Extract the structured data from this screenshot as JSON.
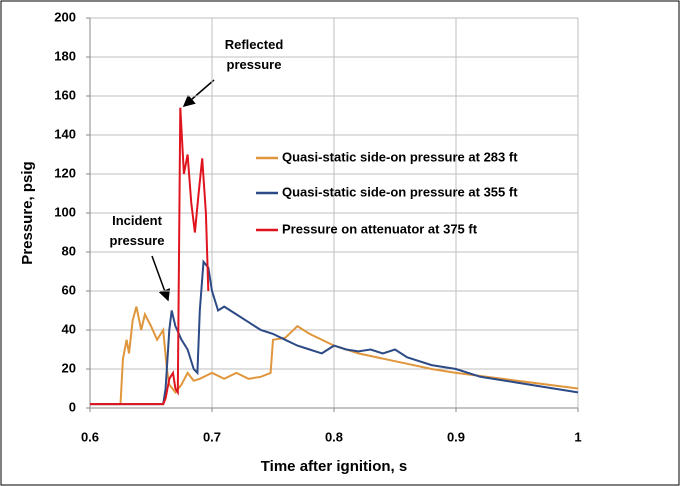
{
  "chart_data": {
    "type": "line",
    "xlabel": "Time after ignition, s",
    "ylabel": "Pressure, psig",
    "annotations": [
      "Reflected pressure",
      "Incident pressure"
    ],
    "xlim": [
      0.6,
      1
    ],
    "xticks": [
      0.6,
      0.7,
      0.8,
      0.9,
      1
    ],
    "ylim": [
      0,
      200
    ],
    "yticks": [
      0,
      20,
      40,
      60,
      80,
      100,
      120,
      140,
      160,
      180,
      200
    ],
    "grid": true,
    "legend": "right",
    "series": [
      {
        "name": "Quasi-static side-on pressure at 283 ft",
        "color": "#e0963c",
        "x": [
          0.6,
          0.625,
          0.627,
          0.63,
          0.632,
          0.635,
          0.638,
          0.642,
          0.645,
          0.65,
          0.655,
          0.66,
          0.663,
          0.665,
          0.67,
          0.675,
          0.68,
          0.685,
          0.69,
          0.7,
          0.71,
          0.72,
          0.73,
          0.74,
          0.748,
          0.75,
          0.76,
          0.77,
          0.78,
          0.8,
          0.82,
          0.85,
          0.88,
          0.9,
          0.95,
          1.0
        ],
        "values": [
          2,
          2,
          25,
          35,
          28,
          45,
          52,
          40,
          48,
          42,
          35,
          40,
          20,
          12,
          8,
          12,
          18,
          14,
          15,
          18,
          15,
          18,
          15,
          16,
          18,
          35,
          36,
          42,
          38,
          32,
          28,
          24,
          20,
          18,
          14,
          10
        ]
      },
      {
        "name": "Quasi-static side-on pressure at 355 ft",
        "color": "#2c4a86",
        "x": [
          0.6,
          0.66,
          0.662,
          0.665,
          0.667,
          0.67,
          0.675,
          0.68,
          0.685,
          0.688,
          0.69,
          0.693,
          0.697,
          0.7,
          0.705,
          0.71,
          0.72,
          0.73,
          0.74,
          0.75,
          0.76,
          0.77,
          0.78,
          0.79,
          0.8,
          0.81,
          0.82,
          0.83,
          0.84,
          0.85,
          0.86,
          0.88,
          0.9,
          0.92,
          0.95,
          0.98,
          1.0
        ],
        "values": [
          2,
          2,
          10,
          40,
          50,
          42,
          35,
          30,
          20,
          18,
          50,
          75,
          72,
          60,
          50,
          52,
          48,
          44,
          40,
          38,
          35,
          32,
          30,
          28,
          32,
          30,
          29,
          30,
          28,
          30,
          26,
          22,
          20,
          16,
          13,
          10,
          8
        ]
      },
      {
        "name": "Pressure on attenuator at 375 ft",
        "color": "#e0141e",
        "x": [
          0.6,
          0.66,
          0.662,
          0.665,
          0.668,
          0.67,
          0.672,
          0.674,
          0.677,
          0.68,
          0.683,
          0.686,
          0.689,
          0.692,
          0.695,
          0.697
        ],
        "values": [
          2,
          2,
          5,
          15,
          18,
          10,
          8,
          154,
          120,
          130,
          105,
          90,
          110,
          128,
          100,
          60
        ]
      }
    ]
  }
}
